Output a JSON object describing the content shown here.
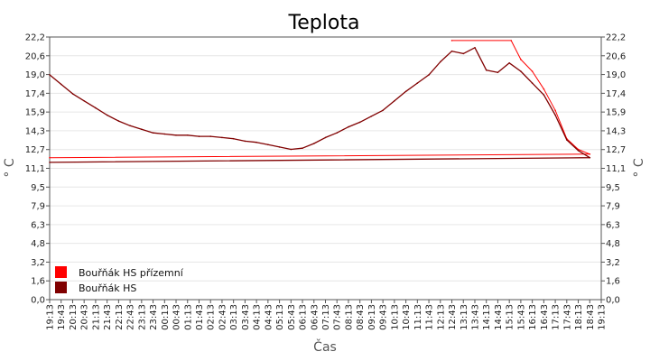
{
  "chart_data": {
    "type": "line",
    "title": "Teplota",
    "xlabel": "Čas",
    "ylabel": "° C",
    "ylabel_right": "° C",
    "y_ticks": [
      "0,0",
      "1,6",
      "3,2",
      "4,8",
      "6,3",
      "7,9",
      "9,5",
      "11,1",
      "12,7",
      "14,3",
      "15,9",
      "17,4",
      "19,0",
      "20,6",
      "22,2"
    ],
    "ylim": [
      0,
      22.2
    ],
    "x_ticks": [
      "19:13",
      "19:43",
      "20:13",
      "20:43",
      "21:13",
      "21:43",
      "22:13",
      "22:43",
      "23:13",
      "23:43",
      "00:13",
      "00:43",
      "01:13",
      "01:43",
      "02:13",
      "02:43",
      "03:13",
      "03:43",
      "04:13",
      "04:43",
      "05:13",
      "05:43",
      "06:13",
      "06:43",
      "07:13",
      "07:43",
      "08:13",
      "08:43",
      "09:13",
      "09:43",
      "10:13",
      "10:43",
      "11:13",
      "11:43",
      "12:13",
      "12:43",
      "13:13",
      "13:43",
      "14:13",
      "14:43",
      "15:13",
      "15:43",
      "16:13",
      "16:43",
      "17:13",
      "17:43",
      "18:13",
      "18:43",
      "19:13"
    ],
    "grid": true,
    "legend_position": "bottom-left",
    "series": [
      {
        "name": "Bouřňák HS přízemní",
        "color": "#ff0000",
        "x": [
          "12:43",
          "15:13",
          "15:28",
          "15:43",
          "16:13",
          "16:43",
          "17:13",
          "17:43",
          "18:13",
          "18:43",
          "19:13"
        ],
        "values": [
          21.9,
          21.9,
          20.8,
          20.3,
          19.3,
          17.8,
          16.0,
          13.6,
          12.7,
          12.3,
          12.0
        ]
      },
      {
        "name": "Bouřňák HS",
        "color": "#800000",
        "x": [
          "19:13",
          "19:43",
          "20:13",
          "20:43",
          "21:13",
          "21:43",
          "22:13",
          "22:43",
          "23:13",
          "23:43",
          "00:13",
          "00:43",
          "01:13",
          "01:43",
          "02:13",
          "02:43",
          "03:13",
          "03:43",
          "04:13",
          "04:43",
          "05:13",
          "05:43",
          "06:13",
          "06:43",
          "07:13",
          "07:43",
          "08:13",
          "08:43",
          "09:13",
          "09:43",
          "10:13",
          "10:43",
          "11:13",
          "11:43",
          "12:13",
          "12:43",
          "13:13",
          "13:43",
          "14:13",
          "14:43",
          "15:13",
          "15:43",
          "16:13",
          "16:43",
          "17:13",
          "17:43",
          "18:13",
          "18:43",
          "19:13"
        ],
        "values": [
          19.0,
          18.2,
          17.4,
          16.8,
          16.2,
          15.6,
          15.1,
          14.7,
          14.4,
          14.1,
          14.0,
          13.9,
          13.9,
          13.8,
          13.8,
          13.7,
          13.6,
          13.4,
          13.3,
          13.1,
          12.9,
          12.7,
          12.8,
          13.2,
          13.7,
          14.1,
          14.6,
          15.0,
          15.5,
          16.0,
          16.8,
          17.6,
          18.3,
          19.0,
          20.1,
          21.0,
          20.8,
          21.3,
          19.4,
          19.2,
          20.0,
          19.3,
          18.3,
          17.3,
          15.6,
          13.5,
          12.6,
          12.0,
          11.6
        ]
      }
    ]
  }
}
